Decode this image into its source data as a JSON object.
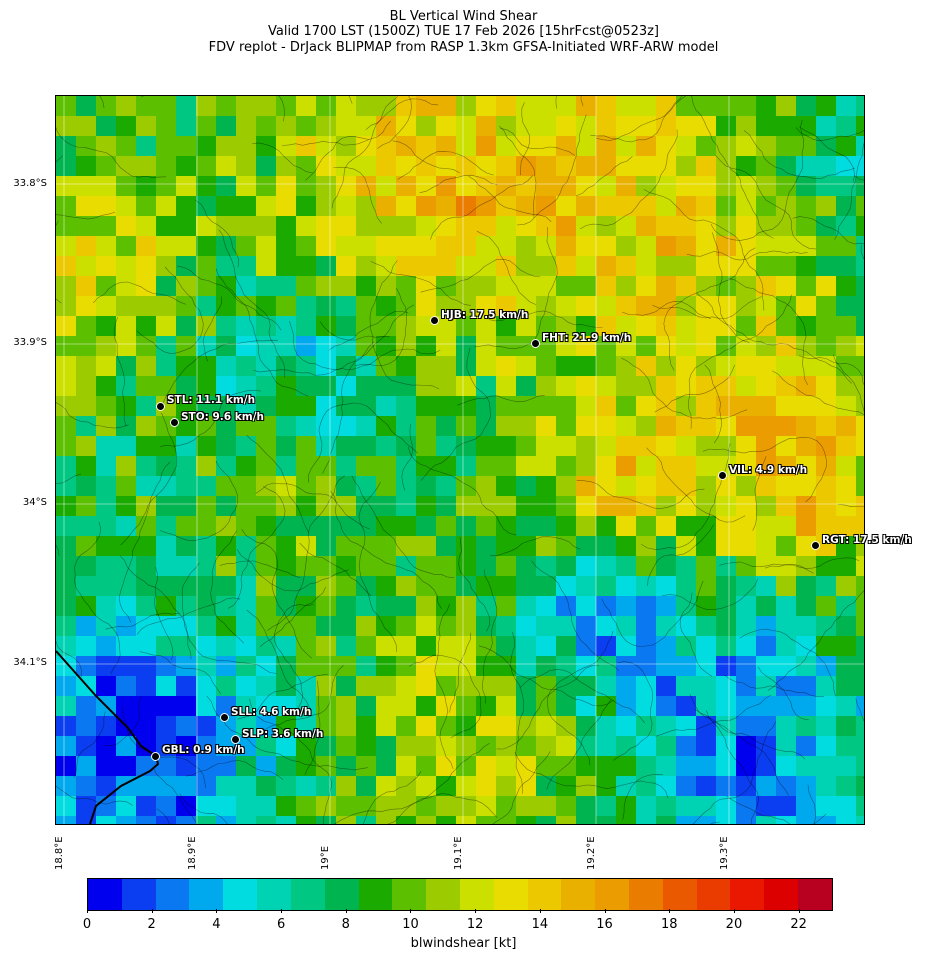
{
  "header": {
    "line1": "BL Vertical Wind Shear",
    "line2": "Valid 1700 LST (1500Z) TUE 17 Feb 2026 [15hrFcst@0523z]",
    "line3": "FDV replot - DrJack BLIPMAP from RASP 1.3km GFSA-Initiated WRF-ARW model"
  },
  "axes": {
    "lat_labels": [
      "33.8°S",
      "33.9°S",
      "34°S",
      "34.1°S"
    ],
    "lon_labels": [
      "18.8°E",
      "18.9°E",
      "19°E",
      "19.1°E",
      "19.2°E",
      "19.3°E"
    ]
  },
  "stations": [
    {
      "code": "HJB",
      "label": "HJB: 17.5 km/h",
      "value_kmh": 17.5
    },
    {
      "code": "FHT",
      "label": "FHT: 21.9 km/h",
      "value_kmh": 21.9
    },
    {
      "code": "STL",
      "label": "STL: 11.1 km/h",
      "value_kmh": 11.1
    },
    {
      "code": "STO",
      "label": "STO: 9.6 km/h",
      "value_kmh": 9.6
    },
    {
      "code": "VIL",
      "label": "VIL: 4.9 km/h",
      "value_kmh": 4.9
    },
    {
      "code": "RGT",
      "label": "RGT: 17.5 km/h",
      "value_kmh": 17.5
    },
    {
      "code": "SLL",
      "label": "SLL: 4.6 km/h",
      "value_kmh": 4.6
    },
    {
      "code": "SLP",
      "label": "SLP: 3.6 km/h",
      "value_kmh": 3.6
    },
    {
      "code": "GBL",
      "label": "GBL: 0.9 km/h",
      "value_kmh": 0.9
    }
  ],
  "colorbar": {
    "label": "blwindshear [kt]",
    "ticks": [
      "0",
      "2",
      "4",
      "6",
      "8",
      "10",
      "12",
      "14",
      "16",
      "18",
      "20",
      "22"
    ],
    "range": [
      0,
      23
    ],
    "colors": [
      "#0000ee",
      "#0a3ef0",
      "#0a78f0",
      "#00a8ee",
      "#00dce0",
      "#00d2b4",
      "#00c882",
      "#00b450",
      "#1aaa00",
      "#5cbf00",
      "#9ccc00",
      "#cce000",
      "#e8dc00",
      "#ecc800",
      "#eab000",
      "#ea9c00",
      "#ea7c00",
      "#ea5800",
      "#ea3c00",
      "#ea1800",
      "#dc0000",
      "#b80020"
    ]
  }
}
